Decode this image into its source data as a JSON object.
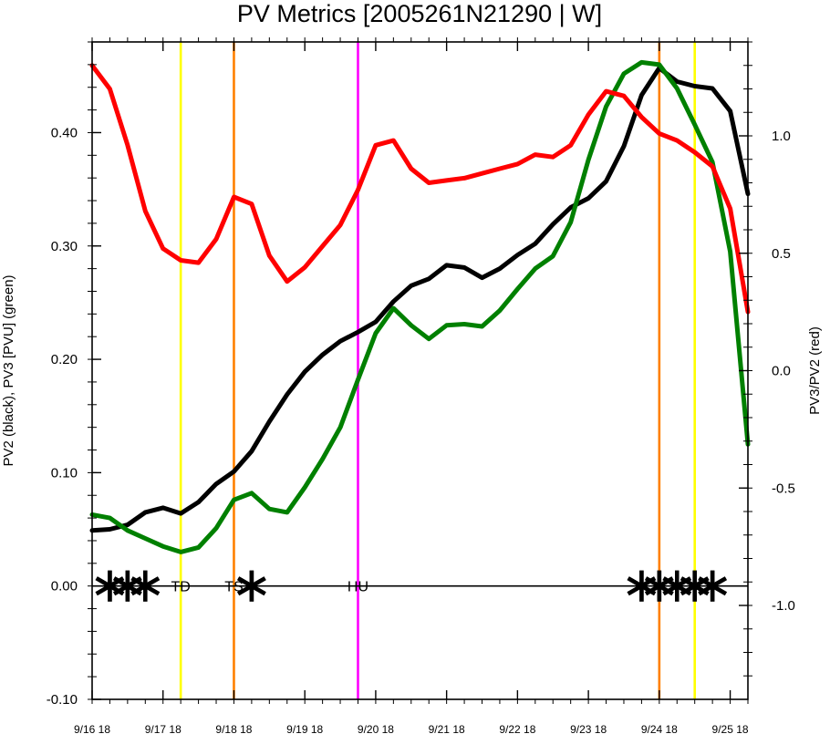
{
  "chart_data": {
    "type": "line",
    "title": "PV Metrics [2005261N21290 | W]",
    "ylabel_left": "PV2 (black), PV3 [PVU] (green)",
    "ylabel_right": "PV3/PV2 (red)",
    "ylim_left": [
      -0.1,
      0.48
    ],
    "ylim_right": [
      -1.4,
      1.4
    ],
    "yticks_left": [
      "-0.10",
      "0.00",
      "0.10",
      "0.20",
      "0.30",
      "0.40"
    ],
    "yticks_right": [
      "-1.0",
      "-0.5",
      "0.0",
      "0.5",
      "1.0"
    ],
    "xlim": [
      0,
      9.25
    ],
    "xtick_labels": [
      "9/16 18",
      "9/17 18",
      "9/18 18",
      "9/19 18",
      "9/20 18",
      "9/21 18",
      "9/22 18",
      "9/23 18",
      "9/24 18",
      "9/25 18"
    ],
    "x": [
      0,
      0.25,
      0.5,
      0.75,
      1,
      1.25,
      1.5,
      1.75,
      2,
      2.25,
      2.5,
      2.75,
      3,
      3.25,
      3.5,
      3.75,
      4,
      4.25,
      4.5,
      4.75,
      5,
      5.25,
      5.5,
      5.75,
      6,
      6.25,
      6.5,
      6.75,
      7,
      7.25,
      7.5,
      7.75,
      8,
      8.25,
      8.5,
      8.75,
      9,
      9.25
    ],
    "series": [
      {
        "axis": "left",
        "color": "#000000",
        "values": [
          0.049,
          0.05,
          0.054,
          0.065,
          0.069,
          0.064,
          0.074,
          0.09,
          0.101,
          0.119,
          0.145,
          0.169,
          0.189,
          0.204,
          0.216,
          0.224,
          0.233,
          0.251,
          0.265,
          0.271,
          0.283,
          0.281,
          0.272,
          0.28,
          0.292,
          0.302,
          0.319,
          0.334,
          0.342,
          0.357,
          0.388,
          0.433,
          0.457,
          0.445,
          0.441,
          0.439,
          0.419,
          0.346
        ]
      },
      {
        "axis": "left",
        "color": "#008000",
        "values": [
          0.063,
          0.06,
          0.049,
          0.042,
          0.035,
          0.03,
          0.034,
          0.051,
          0.076,
          0.082,
          0.068,
          0.065,
          0.087,
          0.112,
          0.14,
          0.182,
          0.223,
          0.245,
          0.23,
          0.218,
          0.23,
          0.231,
          0.229,
          0.243,
          0.262,
          0.28,
          0.291,
          0.321,
          0.376,
          0.423,
          0.452,
          0.462,
          0.46,
          0.439,
          0.407,
          0.374,
          0.295,
          0.125
        ]
      },
      {
        "axis": "right",
        "color": "#ff0000",
        "values": [
          1.3,
          1.2,
          0.96,
          0.68,
          0.52,
          0.47,
          0.46,
          0.56,
          0.74,
          0.71,
          0.49,
          0.38,
          0.44,
          0.53,
          0.62,
          0.77,
          0.96,
          0.98,
          0.86,
          0.8,
          0.81,
          0.82,
          0.84,
          0.86,
          0.88,
          0.92,
          0.91,
          0.96,
          1.09,
          1.19,
          1.17,
          1.08,
          1.01,
          0.98,
          0.93,
          0.87,
          0.69,
          0.25
        ]
      }
    ],
    "vertical_lines": [
      {
        "x": 1.25,
        "color": "#ffff00"
      },
      {
        "x": 2.0,
        "color": "#ff8000"
      },
      {
        "x": 3.75,
        "color": "#ff00ff"
      },
      {
        "x": 8.0,
        "color": "#ff8000"
      },
      {
        "x": 8.5,
        "color": "#ffff00"
      }
    ],
    "markers": [
      {
        "x": 0.25,
        "y": 0.0
      },
      {
        "x": 0.5,
        "y": 0.0
      },
      {
        "x": 0.75,
        "y": 0.0
      },
      {
        "x": 2.25,
        "y": 0.0
      },
      {
        "x": 7.75,
        "y": 0.0
      },
      {
        "x": 8.0,
        "y": 0.0
      },
      {
        "x": 8.25,
        "y": 0.0
      },
      {
        "x": 8.5,
        "y": 0.0
      },
      {
        "x": 8.75,
        "y": 0.0
      }
    ],
    "stage_labels": [
      {
        "text": "TD",
        "x": 1.25,
        "y": 0.0
      },
      {
        "text": "TS",
        "x": 2.0,
        "y": 0.0
      },
      {
        "text": "HU",
        "x": 3.75,
        "y": 0.0
      }
    ]
  }
}
